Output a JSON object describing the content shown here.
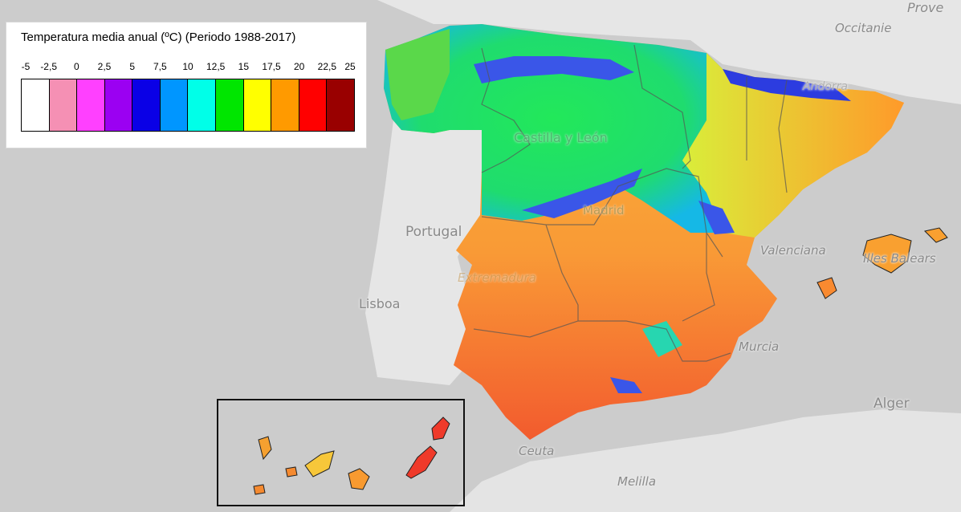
{
  "legend": {
    "title": "Temperatura media anual (ºC) (Periodo 1988-2017)",
    "ticks": [
      "-5",
      "-2,5",
      "0",
      "2,5",
      "5",
      "7,5",
      "10",
      "12,5",
      "15",
      "17,5",
      "20",
      "22,5",
      "25"
    ],
    "colors": [
      "#ffffff",
      "#f590b4",
      "#ff40ff",
      "#9b00f2",
      "#0a00e6",
      "#0096ff",
      "#00ffe8",
      "#00e600",
      "#ffff00",
      "#ff9a00",
      "#ff0000",
      "#990000"
    ]
  },
  "labels": {
    "provence": "Prove",
    "occitanie": "Occitanie",
    "portugal": "Portugal",
    "lisboa": "Lisboa",
    "castilla": "Castilla y León",
    "madrid": "Madrid",
    "extremadura": "Extremadura",
    "valenciana": "Valenciana",
    "baleares": "Illes Balears",
    "murcia": "Murcia",
    "alger": "Alger",
    "ceuta": "Ceuta",
    "melilla": "Melilla",
    "andorra": "Andorra"
  }
}
